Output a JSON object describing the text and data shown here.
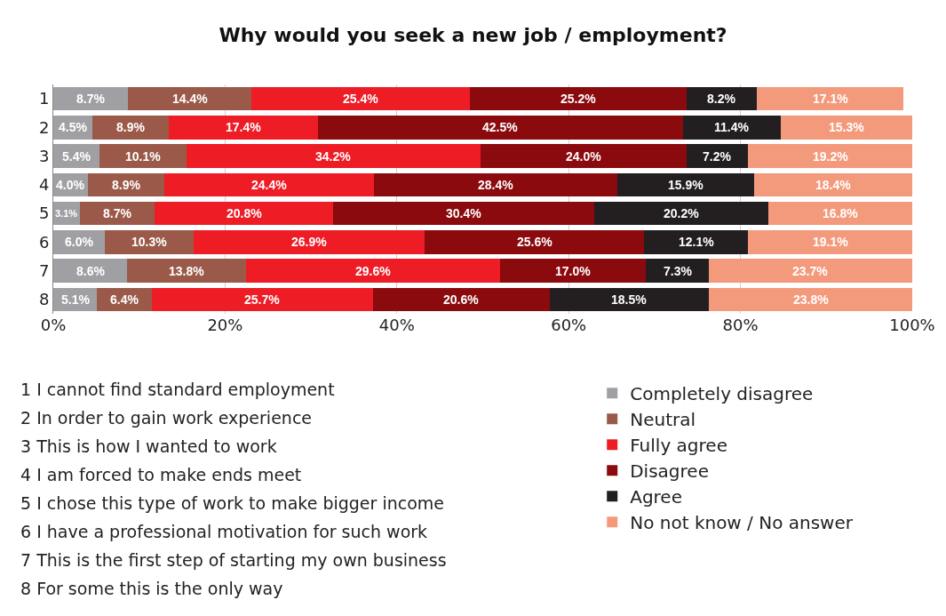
{
  "chart_data": {
    "type": "bar",
    "orientation": "horizontal",
    "stacked": true,
    "title": "Why would you seek a new job / employment?",
    "categories": [
      "1",
      "2",
      "3",
      "4",
      "5",
      "6",
      "7",
      "8"
    ],
    "series": [
      {
        "name": "Completely disagree",
        "color": "#a0a0a4",
        "values": [
          8.7,
          4.5,
          5.4,
          4.0,
          3.1,
          6.0,
          8.6,
          5.1
        ],
        "value_labels": [
          "8.7%",
          "4.5%",
          "5.4%",
          "4.0%",
          "3.1%",
          "6.0%",
          "8.6%",
          "5.1%"
        ]
      },
      {
        "name": "Neutral",
        "color": "#9b5a49",
        "values": [
          14.4,
          8.9,
          10.1,
          8.9,
          8.7,
          10.3,
          13.8,
          6.4
        ],
        "value_labels": [
          "14.4%",
          "8.9%",
          "10.1%",
          "8.9%",
          "8.7%",
          "10.3%",
          "13.8%",
          "6.4%"
        ]
      },
      {
        "name": "Fully agree",
        "color": "#ee1c25",
        "values": [
          25.4,
          17.4,
          34.2,
          24.4,
          20.8,
          26.9,
          29.6,
          25.7
        ],
        "value_labels": [
          "25.4%",
          "17.4%",
          "34.2%",
          "24.4%",
          "20.8%",
          "26.9%",
          "29.6%",
          "25.7%"
        ]
      },
      {
        "name": "Disagree",
        "color": "#8b0a0e",
        "values": [
          25.2,
          42.5,
          24.0,
          28.4,
          30.4,
          25.6,
          17.0,
          20.6
        ],
        "value_labels": [
          "25.2%",
          "42.5%",
          "24.0%",
          "28.4%",
          "30.4%",
          "25.6%",
          "17.0%",
          "20.6%"
        ]
      },
      {
        "name": "Agree",
        "color": "#231f20",
        "values": [
          8.2,
          11.4,
          7.2,
          15.9,
          20.2,
          12.1,
          7.3,
          18.5
        ],
        "value_labels": [
          "8.2%",
          "11.4%",
          "7.2%",
          "15.9%",
          "20.2%",
          "12.1%",
          "7.3%",
          "18.5%"
        ]
      },
      {
        "name": "No not know / No answer",
        "color": "#f49a7c",
        "values": [
          17.1,
          15.3,
          19.2,
          18.4,
          16.8,
          19.1,
          23.7,
          23.8
        ],
        "value_labels": [
          "17.1%",
          "15.3%",
          "19.2%",
          "18.4%",
          "16.8%",
          "19.1%",
          "23.7%",
          "23.8%"
        ]
      }
    ],
    "xlim": [
      0,
      100
    ],
    "xticks": [
      {
        "value": 0,
        "label": "0%"
      },
      {
        "value": 20,
        "label": "20%"
      },
      {
        "value": 40,
        "label": "40%"
      },
      {
        "value": 60,
        "label": "60%"
      },
      {
        "value": 80,
        "label": "80%"
      },
      {
        "value": 100,
        "label": "100%"
      }
    ],
    "grid": "x",
    "legend": "bottom right",
    "annotations": [
      "1 I cannot find standard employment",
      "2 In order to gain work experience",
      "3 This is how I wanted to work",
      "4 I am forced to make ends meet",
      "5 I chose this type of work to make bigger income",
      "6 I have a professional motivation for such work",
      "7 This is the first step of starting my own business",
      "8 For some this is the only way"
    ]
  }
}
